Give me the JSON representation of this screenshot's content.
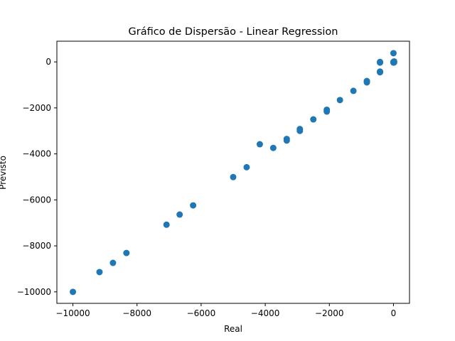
{
  "chart_data": {
    "type": "scatter",
    "title": "Gráfico de Dispersão - Linear Regression",
    "xlabel": "Real",
    "ylabel": "Previsto",
    "xlim": [
      -10500,
      500
    ],
    "ylim": [
      -10500,
      900
    ],
    "grid": false,
    "marker_color": "#1f77b4",
    "xticks": [
      {
        "value": -10000,
        "label": "−10000"
      },
      {
        "value": -8000,
        "label": "−8000"
      },
      {
        "value": -6000,
        "label": "−6000"
      },
      {
        "value": -4000,
        "label": "−4000"
      },
      {
        "value": -2000,
        "label": "−2000"
      },
      {
        "value": 0,
        "label": "0"
      }
    ],
    "yticks": [
      {
        "value": 0,
        "label": "0"
      },
      {
        "value": -2000,
        "label": "−2000"
      },
      {
        "value": -4000,
        "label": "−4000"
      },
      {
        "value": -6000,
        "label": "−6000"
      },
      {
        "value": -8000,
        "label": "−8000"
      },
      {
        "value": -10000,
        "label": "−10000"
      }
    ],
    "points": [
      {
        "x": -10000,
        "y": -10000
      },
      {
        "x": -9170,
        "y": -9140
      },
      {
        "x": -8750,
        "y": -8740
      },
      {
        "x": -8330,
        "y": -8310
      },
      {
        "x": -7080,
        "y": -7080
      },
      {
        "x": -6670,
        "y": -6640
      },
      {
        "x": -6250,
        "y": -6240
      },
      {
        "x": -5000,
        "y": -5010
      },
      {
        "x": -4580,
        "y": -4580
      },
      {
        "x": -4170,
        "y": -3580
      },
      {
        "x": -3750,
        "y": -3740
      },
      {
        "x": -3330,
        "y": -3350
      },
      {
        "x": -3330,
        "y": -3420
      },
      {
        "x": -2920,
        "y": -2920
      },
      {
        "x": -2920,
        "y": -3000
      },
      {
        "x": -2500,
        "y": -2500
      },
      {
        "x": -2080,
        "y": -2080
      },
      {
        "x": -2080,
        "y": -2160
      },
      {
        "x": -1670,
        "y": -1660
      },
      {
        "x": -1250,
        "y": -1260
      },
      {
        "x": -830,
        "y": -830
      },
      {
        "x": -830,
        "y": -890
      },
      {
        "x": -420,
        "y": -420
      },
      {
        "x": -420,
        "y": -450
      },
      {
        "x": -420,
        "y": -30
      },
      {
        "x": -420,
        "y": 0
      },
      {
        "x": 0,
        "y": 380
      },
      {
        "x": 0,
        "y": 0
      },
      {
        "x": 0,
        "y": -30
      },
      {
        "x": 20,
        "y": 20
      },
      {
        "x": 20,
        "y": -20
      }
    ]
  }
}
